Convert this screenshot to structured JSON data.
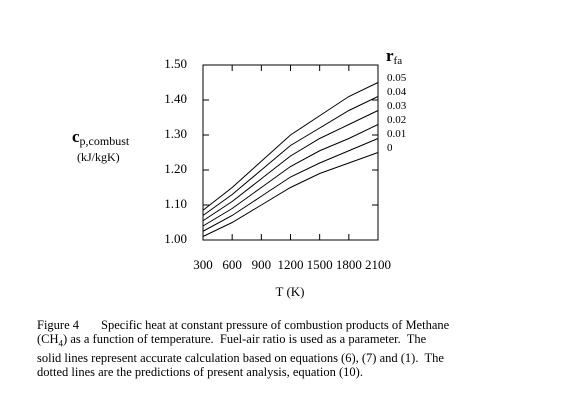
{
  "chart_data": {
    "type": "line",
    "x_label": "T  (K)",
    "y_label": {
      "symbol": "c",
      "subscript": "p,combust",
      "units": "(kJ/kgK)"
    },
    "legend_title": {
      "symbol": "r",
      "subscript": "fa"
    },
    "x": [
      300,
      600,
      900,
      1200,
      1500,
      1800,
      2100
    ],
    "xlim": [
      300,
      2100
    ],
    "xticks": [
      300,
      600,
      900,
      1200,
      1500,
      1800,
      2100
    ],
    "ylim": [
      1.0,
      1.5
    ],
    "yticks": [
      {
        "value": 1.0,
        "label": "1.00"
      },
      {
        "value": 1.1,
        "label": "1.10"
      },
      {
        "value": 1.2,
        "label": "1.20"
      },
      {
        "value": 1.3,
        "label": "1.30"
      },
      {
        "value": 1.4,
        "label": "1.40"
      },
      {
        "value": 1.5,
        "label": "1.50"
      }
    ],
    "series": [
      {
        "name": "0.05",
        "color": "#000000",
        "values": [
          1.085,
          1.15,
          1.225,
          1.3,
          1.355,
          1.41,
          1.45
        ]
      },
      {
        "name": "0.04",
        "color": "#000000",
        "values": [
          1.07,
          1.13,
          1.2,
          1.27,
          1.32,
          1.37,
          1.41
        ]
      },
      {
        "name": "0.03",
        "color": "#000000",
        "values": [
          1.055,
          1.11,
          1.175,
          1.24,
          1.29,
          1.33,
          1.37
        ]
      },
      {
        "name": "0.02",
        "color": "#000000",
        "values": [
          1.04,
          1.09,
          1.15,
          1.21,
          1.255,
          1.29,
          1.33
        ]
      },
      {
        "name": "0.01",
        "color": "#000000",
        "values": [
          1.025,
          1.07,
          1.125,
          1.18,
          1.22,
          1.255,
          1.29
        ]
      },
      {
        "name": "0",
        "color": "#000000",
        "values": [
          1.01,
          1.05,
          1.1,
          1.15,
          1.19,
          1.22,
          1.25
        ]
      }
    ]
  },
  "caption": {
    "label": "Figure 4",
    "line1": "Specific heat at constant pressure of combustion products of Methane",
    "line2_start": "(CH",
    "line2_sub": "4",
    "line2_end": ") as a function of temperature.  Fuel-air ratio is used as a parameter.  The",
    "line3": "solid lines represent accurate calculation based on equations (6), (7) and (1).  The",
    "line4": "dotted lines are the predictions of present analysis, equation (10)."
  }
}
